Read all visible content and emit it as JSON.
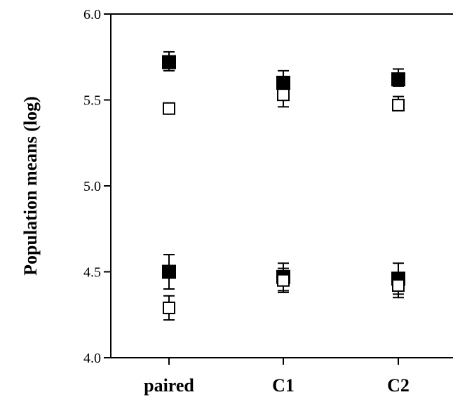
{
  "chart_data": {
    "type": "scatter",
    "title": "",
    "xlabel": "",
    "ylabel": "Population means (log)",
    "categories": [
      "paired",
      "C1",
      "C2"
    ],
    "ylim": [
      4.0,
      6.0
    ],
    "yticks": [
      4.0,
      4.5,
      5.0,
      5.5,
      6.0
    ],
    "ytick_labels": [
      "4.0",
      "4.5",
      "5.0",
      "5.5",
      "6.0"
    ],
    "grid": false,
    "legend": "none",
    "colors": {
      "filled": "#000000",
      "open": "#ffffff",
      "stroke": "#000000"
    },
    "series": [
      {
        "marker": "filled-square",
        "group": "high",
        "values": [
          5.72,
          5.6,
          5.62
        ],
        "errors": [
          [
            5.67,
            5.78
          ],
          [
            5.55,
            5.67
          ],
          [
            5.58,
            5.68
          ]
        ]
      },
      {
        "marker": "open-square",
        "group": "high",
        "values": [
          5.45,
          5.53,
          5.47
        ],
        "errors": [
          [
            5.45,
            5.45
          ],
          [
            5.46,
            5.6
          ],
          [
            5.45,
            5.52
          ]
        ]
      },
      {
        "marker": "filled-square",
        "group": "low",
        "values": [
          4.5,
          4.47,
          4.46
        ],
        "errors": [
          [
            4.4,
            4.6
          ],
          [
            4.39,
            4.55
          ],
          [
            4.37,
            4.55
          ]
        ]
      },
      {
        "marker": "open-square",
        "group": "low",
        "values": [
          4.29,
          4.45,
          4.42
        ],
        "errors": [
          [
            4.22,
            4.36
          ],
          [
            4.38,
            4.52
          ],
          [
            4.35,
            4.48
          ]
        ]
      }
    ]
  }
}
